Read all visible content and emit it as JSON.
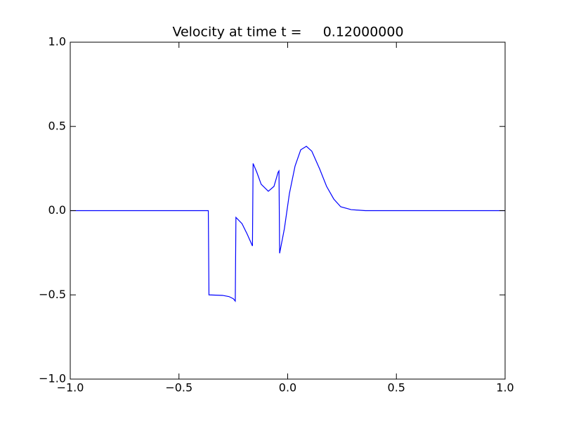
{
  "chart_data": {
    "type": "line",
    "title": "Velocity at time t =     0.12000000",
    "x": [
      -1.0,
      -0.365,
      -0.362,
      -0.3,
      -0.27,
      -0.25,
      -0.241,
      -0.238,
      -0.21,
      -0.186,
      -0.162,
      -0.159,
      -0.142,
      -0.122,
      -0.089,
      -0.063,
      -0.044,
      -0.04,
      -0.037,
      -0.015,
      0.008,
      0.034,
      0.06,
      0.086,
      0.111,
      0.147,
      0.179,
      0.212,
      0.244,
      0.292,
      0.357,
      1.0
    ],
    "values": [
      0,
      0,
      -0.5,
      -0.503,
      -0.51,
      -0.523,
      -0.537,
      -0.04,
      -0.077,
      -0.14,
      -0.21,
      0.28,
      0.228,
      0.157,
      0.115,
      0.144,
      0.228,
      0.236,
      -0.253,
      -0.106,
      0.102,
      0.265,
      0.361,
      0.382,
      0.353,
      0.248,
      0.144,
      0.069,
      0.023,
      0.006,
      0,
      0
    ],
    "color": "#0000ff",
    "xlim": [
      -1.0,
      1.0
    ],
    "ylim": [
      -1.0,
      1.0
    ],
    "xticks": [
      {
        "value": -1.0,
        "label": "−1.0"
      },
      {
        "value": -0.5,
        "label": "−0.5"
      },
      {
        "value": 0,
        "label": "0.0"
      },
      0.5,
      {
        "value": 1.0,
        "label": "1.0"
      }
    ],
    "yticks": [
      {
        "value": -1.0,
        "label": "−1.0"
      },
      {
        "value": -0.5,
        "label": "−0.5"
      },
      {
        "value": 0,
        "label": "0.0"
      },
      0.5,
      {
        "value": 1.0,
        "label": "1.0"
      }
    ]
  }
}
